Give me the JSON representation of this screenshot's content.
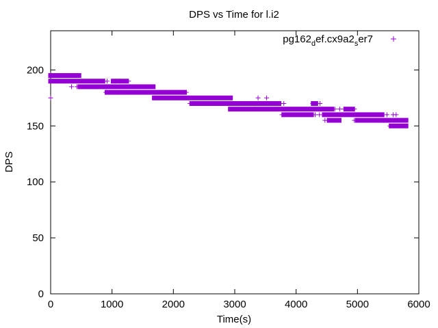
{
  "chart_data": {
    "type": "scatter",
    "title": "DPS vs Time for l.i2",
    "xlabel": "Time(s)",
    "ylabel": "DPS",
    "xlim": [
      0,
      6000
    ],
    "ylim": [
      0,
      235
    ],
    "xticks": [
      0,
      1000,
      2000,
      3000,
      4000,
      5000,
      6000
    ],
    "yticks": [
      0,
      50,
      100,
      150,
      200
    ],
    "grid": false,
    "legend_position": "top-right",
    "marker": "+",
    "color": "#9400d3",
    "series": [
      {
        "name": "pg162_def.cx9a2_ser7",
        "name_parts": [
          {
            "text": "pg162",
            "sub": false
          },
          {
            "text": "d",
            "sub": true
          },
          {
            "text": "ef.cx9a2",
            "sub": false
          },
          {
            "text": "s",
            "sub": true
          },
          {
            "text": "er7",
            "sub": false
          }
        ],
        "segments": [
          {
            "x": [
              0,
              460
            ],
            "y": 195
          },
          {
            "x": [
              0,
              850
            ],
            "y": 190
          },
          {
            "x": [
              1020,
              1230
            ],
            "y": 190
          },
          {
            "x": [
              480,
              1670
            ],
            "y": 185
          },
          {
            "x": [
              920,
              2180
            ],
            "y": 180
          },
          {
            "x": [
              1690,
              2930
            ],
            "y": 175
          },
          {
            "x": [
              2300,
              3720
            ],
            "y": 170
          },
          {
            "x": [
              4280,
              4320
            ],
            "y": 170
          },
          {
            "x": [
              2930,
              4580
            ],
            "y": 165
          },
          {
            "x": [
              4810,
              4920
            ],
            "y": 165
          },
          {
            "x": [
              3800,
              4250
            ],
            "y": 160
          },
          {
            "x": [
              4460,
              5400
            ],
            "y": 160
          },
          {
            "x": [
              4540,
              4700
            ],
            "y": 155
          },
          {
            "x": [
              5000,
              5790
            ],
            "y": 155
          },
          {
            "x": [
              5550,
              5790
            ],
            "y": 150
          }
        ],
        "scattered": [
          [
            0,
            175
          ],
          [
            340,
            185
          ],
          [
            430,
            185
          ],
          [
            760,
            185
          ],
          [
            880,
            190
          ],
          [
            920,
            190
          ],
          [
            1060,
            190
          ],
          [
            1130,
            190
          ],
          [
            1270,
            190
          ],
          [
            900,
            180
          ],
          [
            1040,
            180
          ],
          [
            1100,
            180
          ],
          [
            1190,
            180
          ],
          [
            2210,
            180
          ],
          [
            2250,
            175
          ],
          [
            3380,
            175
          ],
          [
            3520,
            175
          ],
          [
            2270,
            170
          ],
          [
            3750,
            170
          ],
          [
            3800,
            170
          ],
          [
            4270,
            170
          ],
          [
            4390,
            170
          ],
          [
            3330,
            165
          ],
          [
            3660,
            165
          ],
          [
            4630,
            165
          ],
          [
            4710,
            165
          ],
          [
            4780,
            165
          ],
          [
            4950,
            165
          ],
          [
            3770,
            160
          ],
          [
            3830,
            160
          ],
          [
            4310,
            160
          ],
          [
            4380,
            160
          ],
          [
            5480,
            160
          ],
          [
            4470,
            155
          ],
          [
            4520,
            155
          ],
          [
            4950,
            155
          ],
          [
            5420,
            155
          ],
          [
            5580,
            160
          ],
          [
            5630,
            160
          ],
          [
            5530,
            150
          ],
          [
            5600,
            150
          ]
        ]
      }
    ]
  }
}
